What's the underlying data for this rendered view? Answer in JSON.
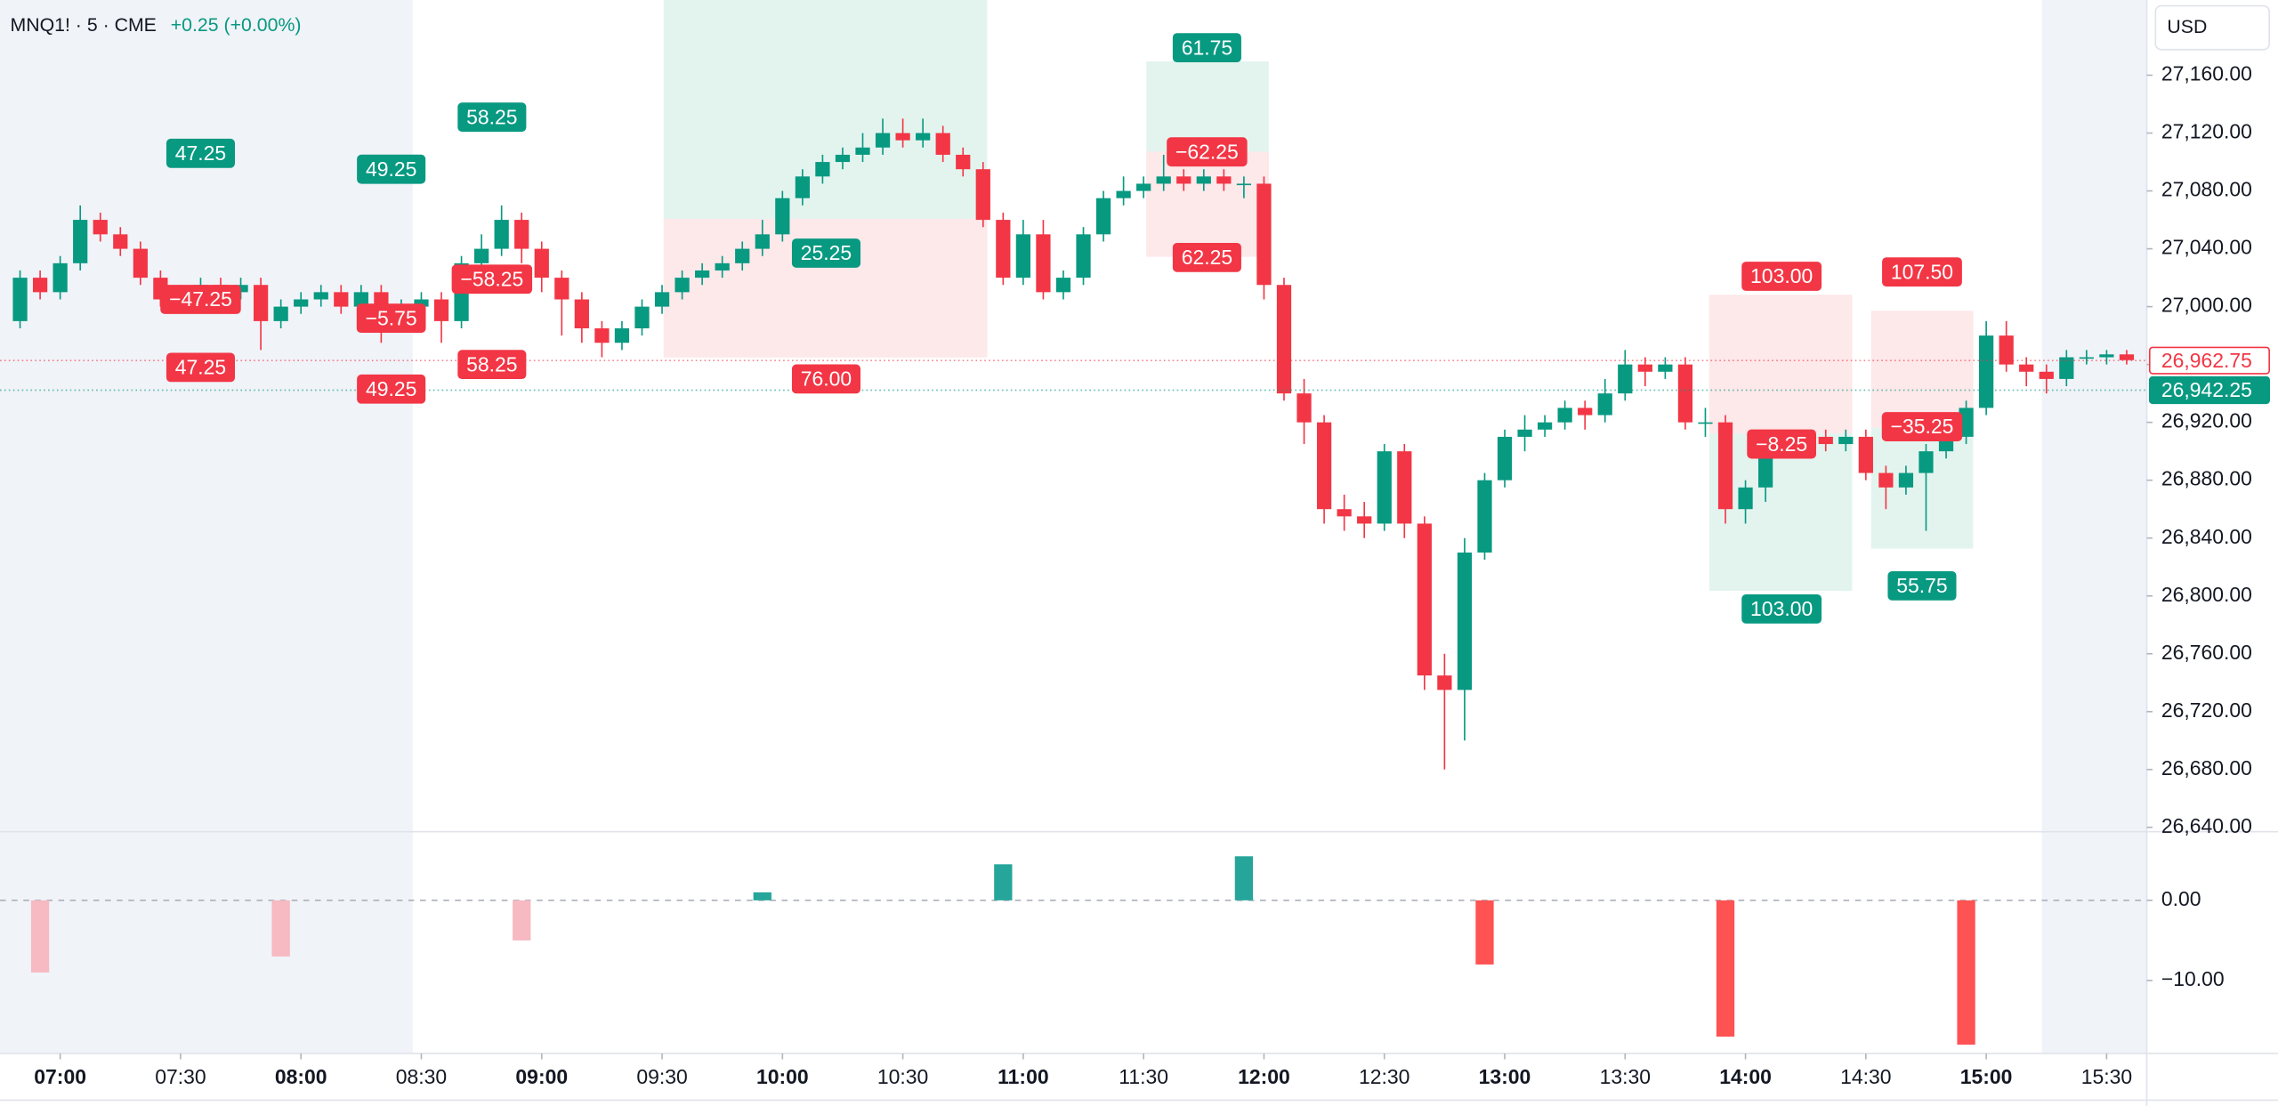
{
  "chart_data": [
    {
      "type": "candlestick",
      "title": "MNQ1! · 5 · CME",
      "subtitle": "+0.25 (+0.00%)",
      "currency": "USD",
      "up_color": "#089981",
      "down_color": "#f23645",
      "x": [
        410,
        415,
        420,
        425,
        430,
        435,
        440,
        445,
        450,
        455,
        460,
        465,
        470,
        475,
        480,
        485,
        490,
        495,
        500,
        505,
        510,
        515,
        520,
        525,
        530,
        535,
        540,
        545,
        550,
        555,
        560,
        565,
        570,
        575,
        580,
        585,
        590,
        595,
        600,
        605,
        610,
        615,
        620,
        625,
        630,
        635,
        640,
        645,
        650,
        655,
        660,
        665,
        670,
        675,
        680,
        685,
        690,
        695,
        700,
        705,
        710,
        715,
        720,
        725,
        730,
        735,
        740,
        745,
        750,
        755,
        760,
        765,
        770,
        775,
        780,
        785,
        790,
        795,
        800,
        805,
        810,
        815,
        820,
        825,
        830,
        835,
        840,
        845,
        850,
        855,
        860,
        865,
        870,
        875,
        880,
        885,
        890,
        895,
        900,
        905,
        910,
        915,
        920,
        925,
        930,
        935
      ],
      "open": [
        26990,
        27020,
        27010,
        27030,
        27060,
        27050,
        27040,
        27020,
        27005,
        27010,
        27015,
        27010,
        27015,
        26990,
        27000,
        27005,
        27010,
        27000,
        27010,
        26990,
        27000,
        27005,
        26990,
        27030,
        27040,
        27060,
        27040,
        27020,
        27005,
        26985,
        26975,
        26985,
        27000,
        27010,
        27020,
        27025,
        27030,
        27040,
        27050,
        27075,
        27090,
        27100,
        27105,
        27110,
        27120,
        27115,
        27120,
        27105,
        27095,
        27060,
        27020,
        27050,
        27010,
        27020,
        27050,
        27075,
        27080,
        27085,
        27090,
        27085,
        27090,
        27085,
        27085,
        27015,
        26940,
        26920,
        26860,
        26855,
        26850,
        26900,
        26850,
        26745,
        26735,
        26830,
        26880,
        26910,
        26915,
        26920,
        26930,
        26925,
        26940,
        26960,
        26955,
        26960,
        26920,
        26920,
        26860,
        26875,
        26900,
        26905,
        26910,
        26905,
        26910,
        26885,
        26875,
        26885,
        26900,
        26910,
        26930,
        26980,
        26960,
        26955,
        26950,
        26965,
        26965,
        26967
      ],
      "high": [
        27025,
        27025,
        27035,
        27070,
        27065,
        27055,
        27045,
        27025,
        27015,
        27020,
        27020,
        27020,
        27020,
        27005,
        27010,
        27015,
        27015,
        27015,
        27015,
        27005,
        27010,
        27010,
        27035,
        27050,
        27070,
        27065,
        27045,
        27025,
        27010,
        26990,
        26990,
        27005,
        27015,
        27025,
        27030,
        27035,
        27045,
        27060,
        27080,
        27095,
        27105,
        27110,
        27120,
        27130,
        27130,
        27130,
        27125,
        27110,
        27100,
        27065,
        27060,
        27060,
        27025,
        27055,
        27080,
        27090,
        27090,
        27105,
        27095,
        27095,
        27095,
        27090,
        27090,
        27020,
        26950,
        26925,
        26870,
        26865,
        26905,
        26905,
        26855,
        26760,
        26840,
        26885,
        26915,
        26925,
        26925,
        26935,
        26935,
        26950,
        26970,
        26965,
        26965,
        26965,
        26930,
        26925,
        26880,
        26905,
        26910,
        26915,
        26915,
        26915,
        26915,
        26890,
        26890,
        26905,
        26915,
        26935,
        26990,
        26990,
        26965,
        26960,
        26970,
        26970,
        26970,
        26970
      ],
      "low": [
        26985,
        27005,
        27005,
        27025,
        27045,
        27035,
        27015,
        27000,
        27000,
        27005,
        27005,
        27005,
        26970,
        26985,
        26995,
        27000,
        26995,
        26995,
        26975,
        26985,
        26995,
        26975,
        26985,
        27025,
        27035,
        27030,
        27010,
        26980,
        26975,
        26965,
        26970,
        26980,
        26995,
        27005,
        27015,
        27020,
        27025,
        27035,
        27045,
        27070,
        27085,
        27095,
        27100,
        27105,
        27110,
        27110,
        27100,
        27090,
        27055,
        27015,
        27015,
        27005,
        27005,
        27015,
        27045,
        27070,
        27075,
        27080,
        27080,
        27080,
        27080,
        27075,
        27005,
        26935,
        26905,
        26850,
        26845,
        26840,
        26845,
        26840,
        26735,
        26680,
        26700,
        26825,
        26875,
        26900,
        26910,
        26915,
        26915,
        26920,
        26935,
        26945,
        26950,
        26915,
        26910,
        26850,
        26850,
        26865,
        26895,
        26900,
        26900,
        26900,
        26880,
        26860,
        26870,
        26845,
        26895,
        26905,
        26925,
        26955,
        26945,
        26940,
        26945,
        26960,
        26960,
        26960
      ],
      "close": [
        27020,
        27010,
        27030,
        27060,
        27050,
        27040,
        27020,
        27005,
        27010,
        27015,
        27010,
        27015,
        26990,
        27000,
        27005,
        27010,
        27000,
        27010,
        26990,
        27000,
        27005,
        26990,
        27030,
        27040,
        27060,
        27040,
        27020,
        27005,
        26985,
        26975,
        26985,
        27000,
        27010,
        27020,
        27025,
        27030,
        27040,
        27050,
        27075,
        27090,
        27100,
        27105,
        27110,
        27120,
        27115,
        27120,
        27105,
        27095,
        27060,
        27020,
        27050,
        27010,
        27020,
        27050,
        27075,
        27080,
        27085,
        27090,
        27085,
        27090,
        27085,
        27085,
        27015,
        26940,
        26920,
        26860,
        26855,
        26850,
        26900,
        26850,
        26745,
        26735,
        26830,
        26880,
        26910,
        26915,
        26920,
        26930,
        26925,
        26940,
        26960,
        26955,
        26960,
        26920,
        26920,
        26860,
        26875,
        26900,
        26905,
        26910,
        26905,
        26910,
        26885,
        26875,
        26885,
        26900,
        26910,
        26930,
        26980,
        26960,
        26955,
        26950,
        26965,
        26965,
        26967,
        26963
      ],
      "xlim": [
        405,
        940
      ],
      "ylim": [
        26637,
        27212
      ],
      "xticks": [
        {
          "value": 420,
          "label": "07:00"
        },
        {
          "value": 450,
          "label": "07:30"
        },
        {
          "value": 480,
          "label": "08:00"
        },
        {
          "value": 510,
          "label": "08:30"
        },
        {
          "value": 540,
          "label": "09:00"
        },
        {
          "value": 570,
          "label": "09:30"
        },
        {
          "value": 600,
          "label": "10:00"
        },
        {
          "value": 630,
          "label": "10:30"
        },
        {
          "value": 660,
          "label": "11:00"
        },
        {
          "value": 690,
          "label": "11:30"
        },
        {
          "value": 720,
          "label": "12:00"
        },
        {
          "value": 750,
          "label": "12:30"
        },
        {
          "value": 780,
          "label": "13:00"
        },
        {
          "value": 810,
          "label": "13:30"
        },
        {
          "value": 840,
          "label": "14:00"
        },
        {
          "value": 870,
          "label": "14:30"
        },
        {
          "value": 900,
          "label": "15:00"
        },
        {
          "value": 930,
          "label": "15:30"
        }
      ],
      "yticks": [
        {
          "value": 26640,
          "label": "26,640.00"
        },
        {
          "value": 26680,
          "label": "26,680.00"
        },
        {
          "value": 26720,
          "label": "26,720.00"
        },
        {
          "value": 26760,
          "label": "26,760.00"
        },
        {
          "value": 26800,
          "label": "26,800.00"
        },
        {
          "value": 26840,
          "label": "26,840.00"
        },
        {
          "value": 26880,
          "label": "26,880.00"
        },
        {
          "value": 26920,
          "label": "26,920.00"
        },
        {
          "value": 26960,
          "label": "26,960.00"
        },
        {
          "value": 27000,
          "label": "27,000.00"
        },
        {
          "value": 27040,
          "label": "27,040.00"
        },
        {
          "value": 27080,
          "label": "27,080.00"
        },
        {
          "value": 27120,
          "label": "27,120.00"
        },
        {
          "value": 27160,
          "label": "27,160.00"
        }
      ],
      "price_labels": [
        {
          "value": 26962.75,
          "label": "26,962.75",
          "color": "#f23645",
          "filled": false
        },
        {
          "value": 26942.25,
          "label": "26,942.25",
          "color": "#089981",
          "filled": true
        }
      ],
      "annotations": [
        {
          "label": "47.25",
          "x": 455,
          "y": 27106,
          "color": "#089981"
        },
        {
          "label": "−47.25",
          "x": 455,
          "y": 27005,
          "color": "#f23645"
        },
        {
          "label": "47.25",
          "x": 455,
          "y": 26958,
          "color": "#f23645"
        },
        {
          "label": "49.25",
          "x": 502.5,
          "y": 27095,
          "color": "#089981"
        },
        {
          "label": "−5.75",
          "x": 502.5,
          "y": 26992,
          "color": "#f23645"
        },
        {
          "label": "49.25",
          "x": 502.5,
          "y": 26943,
          "color": "#f23645"
        },
        {
          "label": "58.25",
          "x": 527.6,
          "y": 27131,
          "color": "#089981"
        },
        {
          "label": "−58.25",
          "x": 527.6,
          "y": 27019,
          "color": "#f23645"
        },
        {
          "label": "58.25",
          "x": 527.6,
          "y": 26960,
          "color": "#f23645"
        },
        {
          "label": "25.25",
          "x": 610.9,
          "y": 27037,
          "color": "#089981"
        },
        {
          "label": "76.00",
          "x": 610.9,
          "y": 26950,
          "color": "#f23645"
        },
        {
          "label": "61.75",
          "x": 705.8,
          "y": 27179,
          "color": "#089981"
        },
        {
          "label": "−62.25",
          "x": 705.8,
          "y": 27107,
          "color": "#f23645"
        },
        {
          "label": "62.25",
          "x": 705.8,
          "y": 27034,
          "color": "#f23645"
        },
        {
          "label": "103.00",
          "x": 849,
          "y": 27021,
          "color": "#f23645"
        },
        {
          "label": "−8.25",
          "x": 849,
          "y": 26905,
          "color": "#f23645"
        },
        {
          "label": "103.00",
          "x": 849,
          "y": 26791,
          "color": "#089981"
        },
        {
          "label": "107.50",
          "x": 884,
          "y": 27024,
          "color": "#f23645"
        },
        {
          "label": "−35.25",
          "x": 884,
          "y": 26917,
          "color": "#f23645"
        },
        {
          "label": "55.75",
          "x": 884,
          "y": 26807,
          "color": "#089981"
        }
      ]
    },
    {
      "type": "bar",
      "x": [
        415,
        475,
        535,
        595,
        655,
        715,
        775,
        835,
        895
      ],
      "values": [
        -9,
        -7,
        -5,
        1,
        4.5,
        5.5,
        -8,
        -17,
        -18
      ],
      "colors": [
        "#f7b9c2",
        "#f7b9c2",
        "#f7b9c2",
        "#26a69a",
        "#26a69a",
        "#26a69a",
        "#ff5252",
        "#ff5252",
        "#ff5252"
      ],
      "ylim": [
        -19.1,
        8.2
      ],
      "yticks": [
        {
          "value": 0,
          "label": "0.00"
        },
        {
          "value": -10,
          "label": "−10.00"
        }
      ],
      "zero_line": true
    }
  ]
}
